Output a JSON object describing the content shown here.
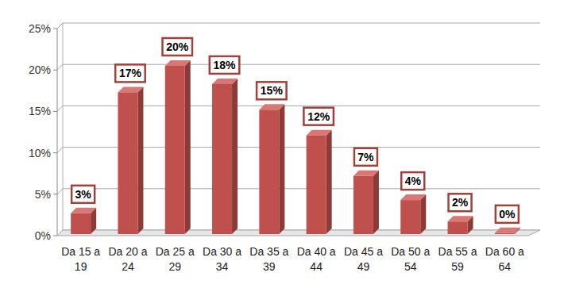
{
  "chart_data": {
    "type": "bar",
    "categories": [
      "Da 15 a 19",
      "Da 20 a 24",
      "Da 25 a 29",
      "Da 30 a 34",
      "Da 35 a 39",
      "Da 40 a 44",
      "Da 45 a 49",
      "Da 50 a 54",
      "Da 55 a 59",
      "Da 60 a 64"
    ],
    "values": [
      2.7,
      17.3,
      20.5,
      18.3,
      15.2,
      12.1,
      7.2,
      4.3,
      1.7,
      0.3
    ],
    "value_labels": [
      "3%",
      "17%",
      "20%",
      "18%",
      "15%",
      "12%",
      "7%",
      "4%",
      "2%",
      "0%"
    ],
    "color": "#c0504d",
    "ylim": [
      0,
      25
    ],
    "yticks": [
      {
        "value": 0,
        "label": "0%"
      },
      {
        "value": 5,
        "label": "5%"
      },
      {
        "value": 10,
        "label": "10%"
      },
      {
        "value": 15,
        "label": "15%"
      },
      {
        "value": 20,
        "label": "20%"
      },
      {
        "value": 25,
        "label": "25%"
      }
    ],
    "grid": true,
    "data_labels": true
  }
}
